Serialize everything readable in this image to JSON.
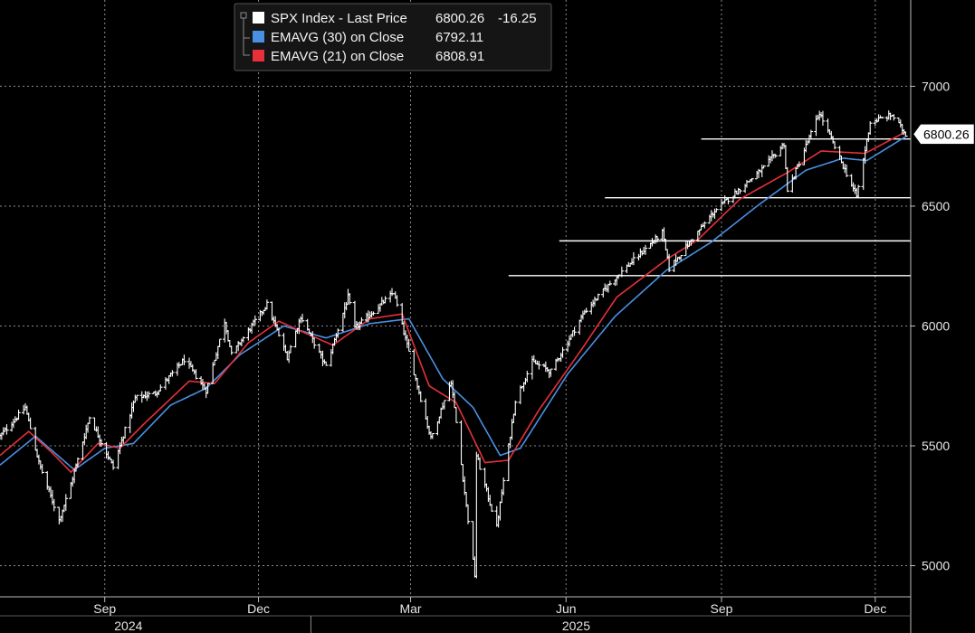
{
  "chart_data": {
    "type": "line",
    "ylim": [
      4870,
      7360
    ],
    "xlim": [
      "2024-07-01",
      "2025-12-22"
    ],
    "y_ticks": [
      5000,
      5500,
      6000,
      6500,
      7000
    ],
    "x_ticks": [
      {
        "label": "Sep",
        "date": "2024-09-01"
      },
      {
        "label": "Dec",
        "date": "2024-12-01"
      },
      {
        "label": "Mar",
        "date": "2025-03-01"
      },
      {
        "label": "Jun",
        "date": "2025-06-01"
      },
      {
        "label": "Sep",
        "date": "2025-09-01"
      },
      {
        "label": "Dec",
        "date": "2025-12-01"
      }
    ],
    "years": [
      {
        "label": "2024",
        "date": "2024-09-15"
      },
      {
        "label": "2025",
        "date": "2025-06-07"
      }
    ],
    "year_divider_date": "2025-01-01",
    "grid": true,
    "colors": {
      "background": "#000000",
      "price": "#ffffff",
      "ema30": "#4a90e2",
      "ema21": "#e8303a",
      "grid": "#8a8a8a"
    },
    "legend": {
      "placement": "top-left",
      "entries": [
        {
          "label": "SPX Index - Last Price",
          "value": "6800.26",
          "change": "-16.25",
          "color": "#ffffff"
        },
        {
          "label": "EMAVG (30)  on Close",
          "value": "6792.11",
          "color": "#4a90e2"
        },
        {
          "label": "EMAVG (21)  on Close",
          "value": "6808.91",
          "color": "#e8303a"
        }
      ]
    },
    "last_price_label": "6800.26",
    "last_price": 6800.26,
    "horizontal_levels": [
      {
        "y": 6780,
        "from": "2025-08-20"
      },
      {
        "y": 6535,
        "from": "2025-06-24"
      },
      {
        "y": 6355,
        "from": "2025-05-28"
      },
      {
        "y": 6210,
        "from": "2025-04-28"
      }
    ],
    "price_path": [
      [
        "2024-07-01",
        5540
      ],
      [
        "2024-07-16",
        5660
      ],
      [
        "2024-07-24",
        5430
      ],
      [
        "2024-08-05",
        5190
      ],
      [
        "2024-08-12",
        5340
      ],
      [
        "2024-08-23",
        5620
      ],
      [
        "2024-09-06",
        5410
      ],
      [
        "2024-09-19",
        5700
      ],
      [
        "2024-10-01",
        5720
      ],
      [
        "2024-10-18",
        5860
      ],
      [
        "2024-10-31",
        5730
      ],
      [
        "2024-11-11",
        6020
      ],
      [
        "2024-11-15",
        5880
      ],
      [
        "2024-12-06",
        6090
      ],
      [
        "2024-12-18",
        5870
      ],
      [
        "2024-12-26",
        6040
      ],
      [
        "2025-01-10",
        5830
      ],
      [
        "2025-01-23",
        6120
      ],
      [
        "2025-01-27",
        5990
      ],
      [
        "2025-02-19",
        6140
      ],
      [
        "2025-03-13",
        5530
      ],
      [
        "2025-03-25",
        5770
      ],
      [
        "2025-04-08",
        4960
      ],
      [
        "2025-04-09",
        5460
      ],
      [
        "2025-04-21",
        5160
      ],
      [
        "2025-05-02",
        5690
      ],
      [
        "2025-05-12",
        5850
      ],
      [
        "2025-05-23",
        5810
      ],
      [
        "2025-06-12",
        6060
      ],
      [
        "2025-06-30",
        6200
      ],
      [
        "2025-07-28",
        6390
      ],
      [
        "2025-08-01",
        6240
      ],
      [
        "2025-08-28",
        6480
      ],
      [
        "2025-09-26",
        6660
      ],
      [
        "2025-10-08",
        6760
      ],
      [
        "2025-10-10",
        6560
      ],
      [
        "2025-10-29",
        6890
      ],
      [
        "2025-11-20",
        6540
      ],
      [
        "2025-11-28",
        6850
      ],
      [
        "2025-12-11",
        6880
      ],
      [
        "2025-12-19",
        6800
      ]
    ],
    "ema21_path": [
      [
        "2024-07-01",
        5460
      ],
      [
        "2024-07-18",
        5560
      ],
      [
        "2024-08-01",
        5470
      ],
      [
        "2024-08-12",
        5390
      ],
      [
        "2024-08-28",
        5510
      ],
      [
        "2024-09-10",
        5490
      ],
      [
        "2024-09-24",
        5590
      ],
      [
        "2024-10-21",
        5770
      ],
      [
        "2024-11-05",
        5760
      ],
      [
        "2024-11-25",
        5930
      ],
      [
        "2024-12-13",
        6020
      ],
      [
        "2025-01-01",
        5960
      ],
      [
        "2025-01-14",
        5920
      ],
      [
        "2025-02-05",
        6030
      ],
      [
        "2025-02-24",
        6050
      ],
      [
        "2025-03-12",
        5750
      ],
      [
        "2025-03-28",
        5680
      ],
      [
        "2025-04-14",
        5430
      ],
      [
        "2025-04-28",
        5440
      ],
      [
        "2025-05-16",
        5650
      ],
      [
        "2025-06-10",
        5900
      ],
      [
        "2025-07-01",
        6120
      ],
      [
        "2025-07-31",
        6280
      ],
      [
        "2025-08-18",
        6360
      ],
      [
        "2025-09-12",
        6530
      ],
      [
        "2025-10-10",
        6640
      ],
      [
        "2025-10-30",
        6730
      ],
      [
        "2025-11-25",
        6720
      ],
      [
        "2025-12-19",
        6810
      ]
    ],
    "ema30_path": [
      [
        "2024-07-01",
        5420
      ],
      [
        "2024-07-22",
        5540
      ],
      [
        "2024-08-14",
        5400
      ],
      [
        "2024-09-01",
        5490
      ],
      [
        "2024-09-18",
        5510
      ],
      [
        "2024-10-10",
        5670
      ],
      [
        "2024-10-31",
        5740
      ],
      [
        "2024-11-20",
        5880
      ],
      [
        "2024-12-16",
        6000
      ],
      [
        "2025-01-10",
        5950
      ],
      [
        "2025-02-05",
        6010
      ],
      [
        "2025-02-28",
        6030
      ],
      [
        "2025-03-20",
        5780
      ],
      [
        "2025-04-07",
        5660
      ],
      [
        "2025-04-23",
        5460
      ],
      [
        "2025-05-05",
        5490
      ],
      [
        "2025-06-02",
        5800
      ],
      [
        "2025-06-30",
        6040
      ],
      [
        "2025-07-30",
        6230
      ],
      [
        "2025-08-26",
        6350
      ],
      [
        "2025-09-22",
        6500
      ],
      [
        "2025-10-21",
        6650
      ],
      [
        "2025-11-12",
        6700
      ],
      [
        "2025-11-26",
        6690
      ],
      [
        "2025-12-19",
        6790
      ]
    ]
  }
}
